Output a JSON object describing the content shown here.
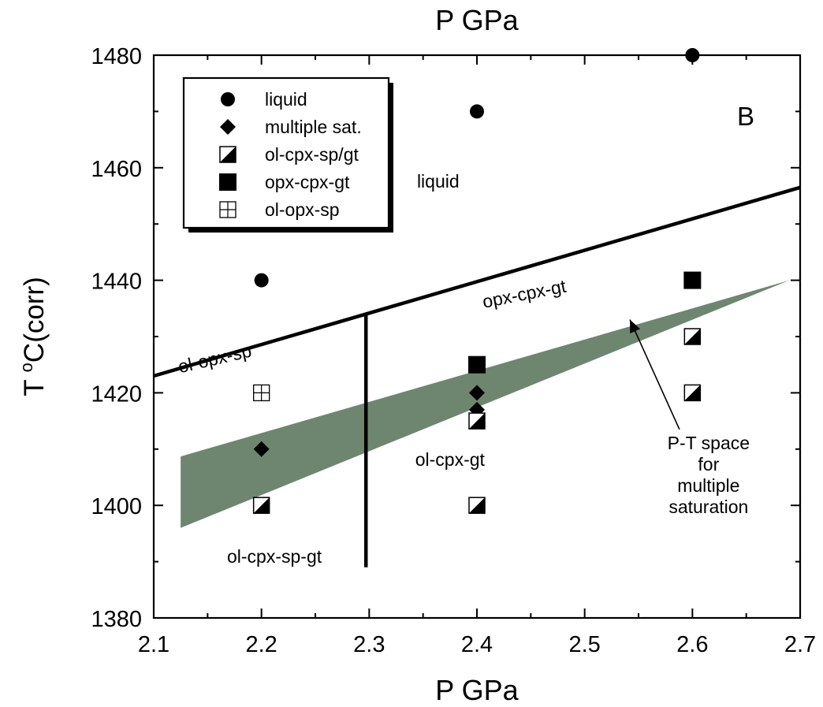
{
  "chart_data": {
    "type": "scatter",
    "panel_label": "B",
    "top_axis_label": "P GPa",
    "xlabel": "P GPa",
    "ylabel_main": "T ",
    "ylabel_sup": "o",
    "ylabel_rest": "C(corr)",
    "xlim": [
      2.1,
      2.7
    ],
    "ylim": [
      1380,
      1480
    ],
    "xticks": [
      "2.1",
      "2.2",
      "2.3",
      "2.4",
      "2.5",
      "2.6",
      "2.7"
    ],
    "yticks": [
      "1380",
      "1400",
      "1420",
      "1440",
      "1460",
      "1480"
    ],
    "legend_position": "top-left",
    "legend": [
      {
        "marker": "circle",
        "label": "liquid"
      },
      {
        "marker": "diamond",
        "label": "multiple sat."
      },
      {
        "marker": "half",
        "label": "ol-cpx-sp/gt"
      },
      {
        "marker": "square",
        "label": "opx-cpx-gt"
      },
      {
        "marker": "grid",
        "label": "ol-opx-sp"
      }
    ],
    "series": [
      {
        "name": "liquid",
        "marker": "circle",
        "points": [
          [
            2.2,
            1440
          ],
          [
            2.4,
            1470
          ],
          [
            2.6,
            1480
          ]
        ]
      },
      {
        "name": "multiple sat.",
        "marker": "diamond",
        "points": [
          [
            2.2,
            1410
          ],
          [
            2.4,
            1420
          ],
          [
            2.4,
            1417
          ]
        ]
      },
      {
        "name": "ol-cpx-sp/gt",
        "marker": "half",
        "points": [
          [
            2.2,
            1400
          ],
          [
            2.4,
            1415
          ],
          [
            2.4,
            1400
          ],
          [
            2.6,
            1430
          ],
          [
            2.6,
            1420
          ]
        ]
      },
      {
        "name": "opx-cpx-gt",
        "marker": "square",
        "points": [
          [
            2.4,
            1425
          ],
          [
            2.6,
            1440
          ]
        ]
      },
      {
        "name": "ol-opx-sp",
        "marker": "grid",
        "points": [
          [
            2.2,
            1420
          ]
        ]
      }
    ],
    "boundary_lines": [
      {
        "points": [
          [
            2.1,
            1423
          ],
          [
            2.7,
            1456.5
          ]
        ]
      },
      {
        "points": [
          [
            2.297,
            1434
          ],
          [
            2.297,
            1389
          ]
        ]
      }
    ],
    "shaded_region": {
      "color": "#6e8670",
      "points": [
        [
          2.125,
          1408.7
        ],
        [
          2.69,
          1440
        ],
        [
          2.125,
          1396
        ]
      ]
    },
    "region_labels": [
      {
        "text": "liquid",
        "x": 2.364,
        "y": 1456.5,
        "rotation": 0
      },
      {
        "text": "opx-cpx-gt",
        "x": 2.445,
        "y": 1436.5,
        "rotation": -11
      },
      {
        "text": "ol-opx-sp",
        "x": 2.158,
        "y": 1425,
        "rotation": -13
      },
      {
        "text": "ol-cpx-gt",
        "x": 2.375,
        "y": 1407,
        "rotation": 0
      },
      {
        "text": "ol-cpx-sp-gt",
        "x": 2.212,
        "y": 1389.8,
        "rotation": 0
      }
    ],
    "annotation": {
      "lines": [
        "P-T space",
        "for",
        "multiple",
        "saturation"
      ],
      "text_x": 2.615,
      "text_y": 1410,
      "arrow_from": [
        2.588,
        1413.5
      ],
      "arrow_to": [
        2.542,
        1433
      ]
    }
  }
}
